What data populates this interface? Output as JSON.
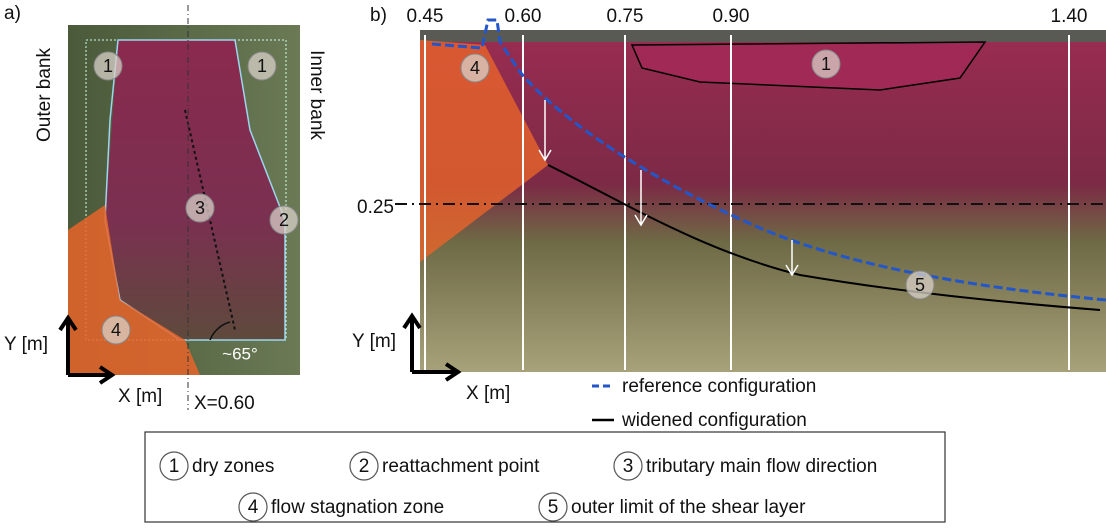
{
  "panel_a": {
    "label": "a)",
    "outer_bank": "Outer bank",
    "inner_bank": "Inner bank",
    "y_axis": "Y [m]",
    "x_axis": "X [m]",
    "x_marker": "X=0.60",
    "angle": "~65°",
    "markers": [
      "1",
      "1",
      "3",
      "2",
      "4"
    ]
  },
  "panel_b": {
    "label": "b)",
    "x_ticks": [
      "0.45",
      "0.60",
      "0.75",
      "0.90",
      "1.40"
    ],
    "y_marker": "0.25",
    "y_axis": "Y [m]",
    "x_axis": "X [m]",
    "markers": [
      "4",
      "1",
      "5"
    ],
    "legend": [
      {
        "label": "reference configuration"
      },
      {
        "label": "widened configuration"
      }
    ]
  },
  "key": [
    {
      "number": "1",
      "label": "dry zones"
    },
    {
      "number": "2",
      "label": "reattachment point"
    },
    {
      "number": "3",
      "label": "tributary main flow direction"
    },
    {
      "number": "4",
      "label": "flow stagnation zone"
    },
    {
      "number": "5",
      "label": "outer limit of the shear layer"
    }
  ]
}
